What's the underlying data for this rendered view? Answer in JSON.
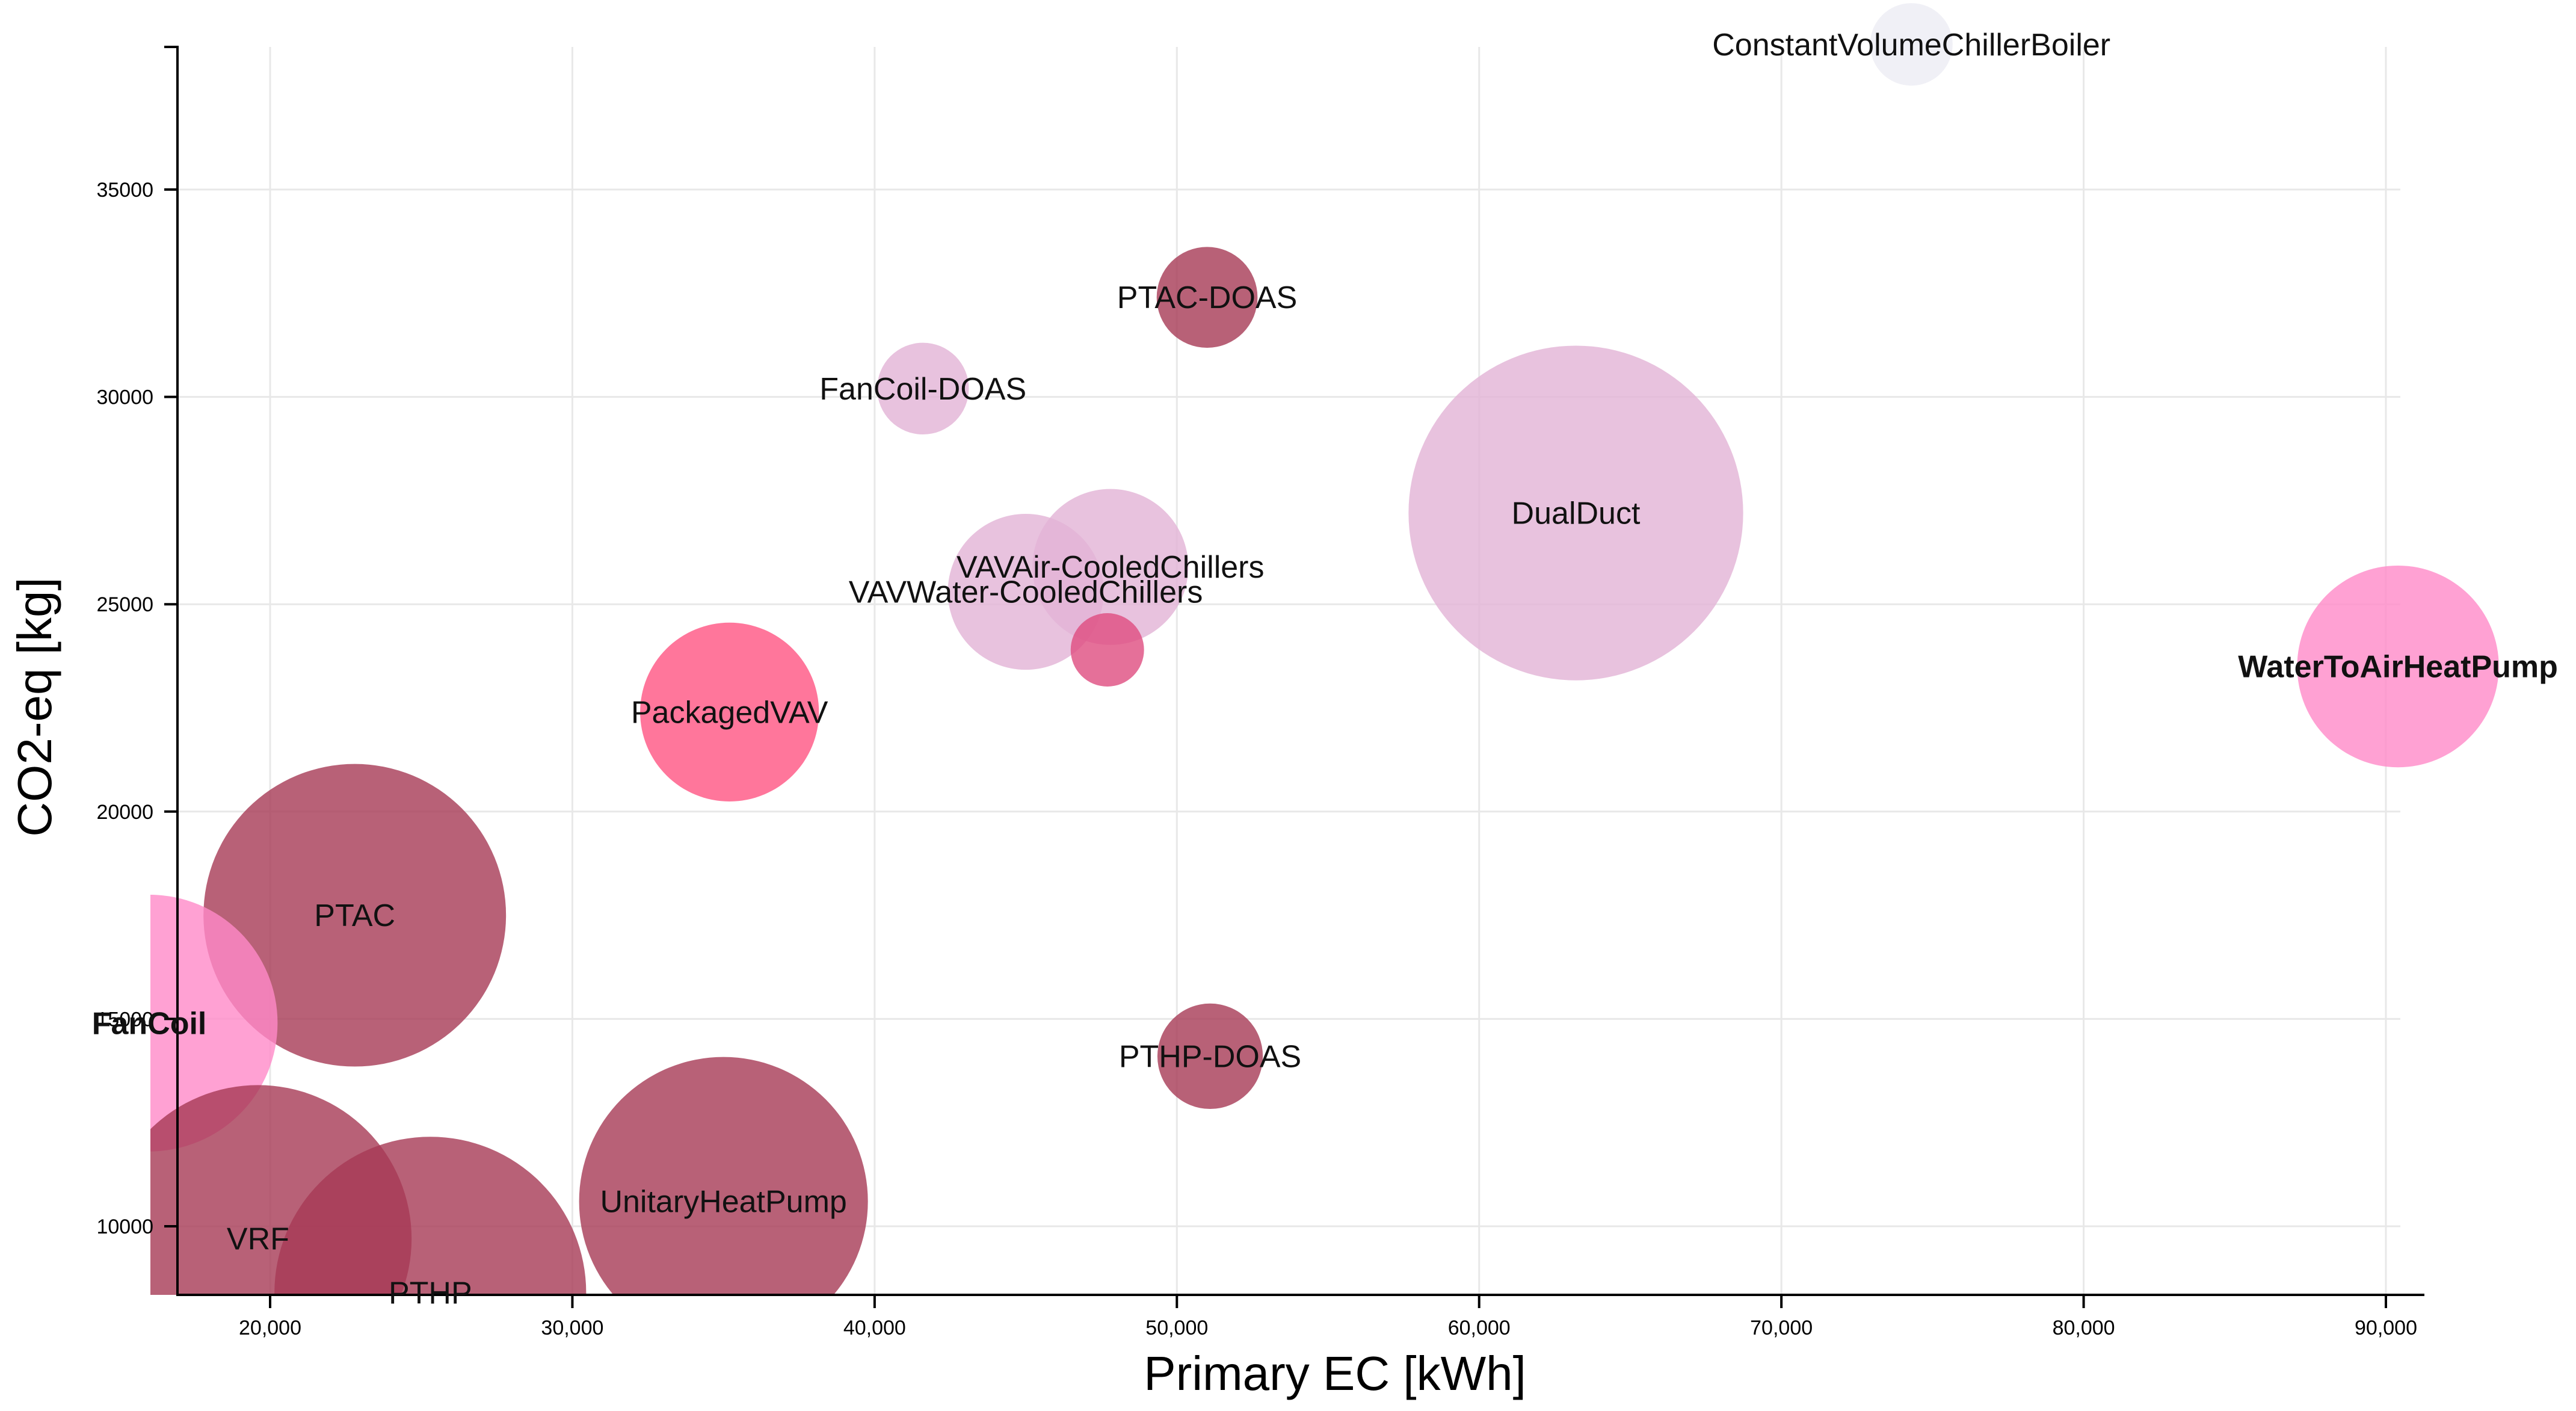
{
  "chart_data": {
    "type": "scatter",
    "subtype": "bubble",
    "title": "",
    "xlabel": "Primary EC [kWh]",
    "ylabel": "CO2-eq [kg]",
    "xlim": [
      16000,
      90000
    ],
    "ylim": [
      8000,
      38500
    ],
    "x_ticks": [
      {
        "value": 20000,
        "label": "20,000"
      },
      {
        "value": 30000,
        "label": "30,000"
      },
      {
        "value": 40000,
        "label": "40,000"
      },
      {
        "value": 50000,
        "label": "50,000"
      },
      {
        "value": 60000,
        "label": "60,000"
      },
      {
        "value": 70000,
        "label": "70,000"
      },
      {
        "value": 80000,
        "label": "80,000"
      },
      {
        "value": 90000,
        "label": "90,000"
      }
    ],
    "y_ticks": [
      {
        "value": 10000,
        "label": "10000"
      },
      {
        "value": 15000,
        "label": "15000"
      },
      {
        "value": 20000,
        "label": "20000"
      },
      {
        "value": 25000,
        "label": "25000"
      },
      {
        "value": 30000,
        "label": "30000"
      },
      {
        "value": 35000,
        "label": "35000"
      }
    ],
    "grid": true,
    "legend": "none",
    "colors": {
      "dark": "#a63a55",
      "light": "#e2b3d6",
      "pink": "#ff8ac8",
      "hot": "#ff5482",
      "magenta": "#df4c80",
      "faint": "#ececf4"
    },
    "series": [
      {
        "name": "PTAC-DOAS",
        "x": 51000,
        "y": 32400,
        "size": 22,
        "color": "#a63a55",
        "label": "PTAC-DOAS",
        "bold": false
      },
      {
        "name": "FanCoil-DOAS",
        "x": 41600,
        "y": 30200,
        "size": 20,
        "color": "#e2b3d6",
        "label": "FanCoil-DOAS",
        "bold": false
      },
      {
        "name": "DualDuct",
        "x": 63200,
        "y": 27200,
        "size": 73,
        "color": "#e2b3d6",
        "label": "DualDuct",
        "bold": false
      },
      {
        "name": "VAVAir-CooledChillers",
        "x": 47800,
        "y": 25900,
        "size": 34,
        "color": "#e2b3d6",
        "label": "VAVAir-CooledChillers",
        "bold": false
      },
      {
        "name": "VAVWater-CooledChillers",
        "x": 45000,
        "y": 25300,
        "size": 34,
        "color": "#e2b3d6",
        "label": "VAVWater-CooledChillers",
        "bold": false
      },
      {
        "name": "VAV (unlabeled)",
        "x": 47700,
        "y": 23900,
        "size": 16,
        "color": "#df4c80",
        "label": "",
        "bold": false
      },
      {
        "name": "WaterToAirHeatPump",
        "x": 90400,
        "y": 23500,
        "size": 44,
        "color": "#ff8ac8",
        "label": "WaterToAirHeatPump",
        "bold": true
      },
      {
        "name": "PackagedVAV",
        "x": 35200,
        "y": 22400,
        "size": 39,
        "color": "#ff5482",
        "label": "PackagedVAV",
        "bold": false
      },
      {
        "name": "PTAC",
        "x": 22800,
        "y": 17500,
        "size": 66,
        "color": "#a63a55",
        "label": "PTAC",
        "bold": false
      },
      {
        "name": "FanCoil",
        "x": 16000,
        "y": 14900,
        "size": 56,
        "color": "#ff8ac8",
        "label": "FanCoil",
        "bold": true
      },
      {
        "name": "PTHP-DOAS",
        "x": 51100,
        "y": 14100,
        "size": 23,
        "color": "#a63a55",
        "label": "PTHP-DOAS",
        "bold": false
      },
      {
        "name": "UnitaryHeatPump",
        "x": 35000,
        "y": 10600,
        "size": 63,
        "color": "#a63a55",
        "label": "UnitaryHeatPump",
        "bold": false
      },
      {
        "name": "VRF",
        "x": 19600,
        "y": 9700,
        "size": 67,
        "color": "#a63a55",
        "label": "VRF",
        "bold": false
      },
      {
        "name": "PTHP",
        "x": 25300,
        "y": 8400,
        "size": 68,
        "color": "#a63a55",
        "label": "PTHP",
        "bold": false
      },
      {
        "name": "ConstantVolumeChillerBoiler",
        "x": 74300,
        "y": 38500,
        "size": 18,
        "color": "#ececf4",
        "label": "ConstantVolumeChillerBoiler",
        "bold": false
      }
    ]
  }
}
